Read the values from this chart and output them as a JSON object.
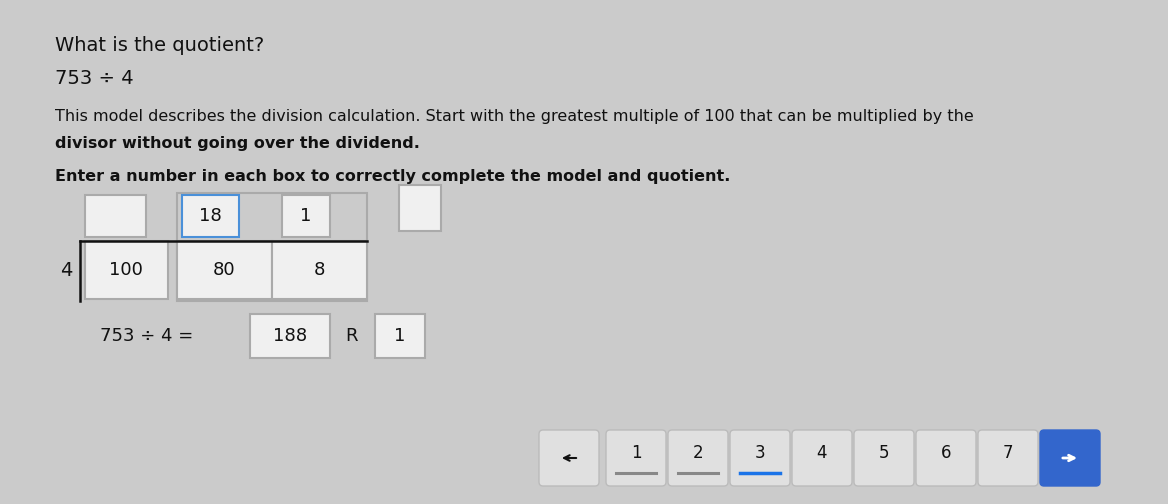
{
  "bg_color": "#cbcbcb",
  "white_panel": "#e8e8e8",
  "title_line1": "What is the quotient?",
  "title_line2": "753 ÷ 4",
  "desc_line1": "This model describes the division calculation. Start with the greatest multiple of 100 that can be multiplied by the",
  "desc_line2": "divisor without going over the dividend.",
  "instruction": "Enter a number in each box to correctly complete the model and quotient.",
  "divisor": "4",
  "box1_top_label": "",
  "box1_bot_label": "100",
  "box2_top_label": "18",
  "box2_bot_label": "80",
  "box3_top_label": "1",
  "box3_bot_label": "8",
  "box4_label": "",
  "equation_left": "753 ÷ 4 =",
  "eq_answer": "188",
  "eq_r": "R",
  "eq_remainder": "1",
  "nav_numbers": [
    "1",
    "2",
    "3",
    "4",
    "5",
    "6",
    "7"
  ],
  "nav_active_idx": 2,
  "box_fill": "#f0f0f0",
  "box_active_border": "#4a90d9",
  "box_normal_border": "#aaaaaa",
  "text_dark": "#111111",
  "text_body": "#111111",
  "font_size_title": 14,
  "font_size_body": 11.5,
  "font_size_instruction": 11.5,
  "font_size_box": 13,
  "font_size_divisor": 14,
  "font_size_equation": 13,
  "nav_normal_fill": "#e0e0e0",
  "nav_normal_border": "#bbbbbb",
  "nav_arrow_fill": "#3366cc",
  "nav_arrow_border": "#3366cc"
}
